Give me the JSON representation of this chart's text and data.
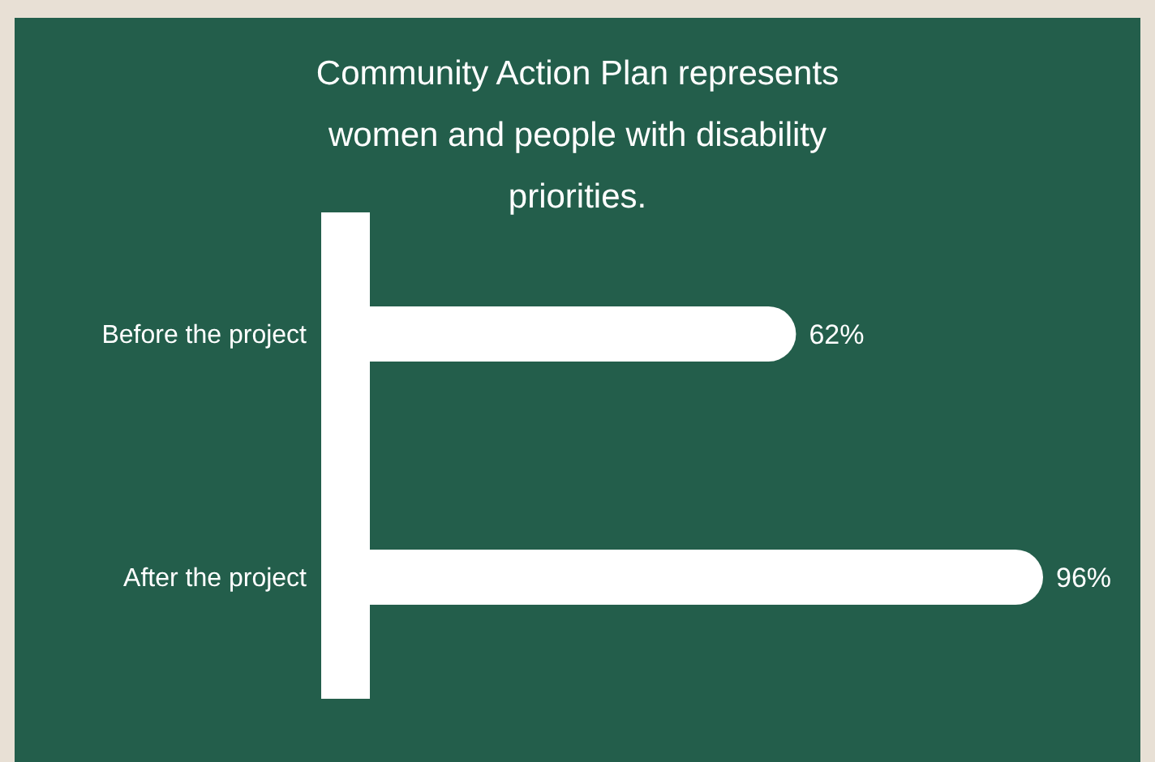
{
  "chart_data": {
    "type": "bar",
    "orientation": "horizontal",
    "title": "Community Action Plan represents women and people with disability priorities.",
    "categories": [
      "Before the project",
      "After the project"
    ],
    "values": [
      62,
      96
    ],
    "value_labels": [
      "62%",
      "96%"
    ],
    "color": "#ffffff",
    "tick_labels": "y",
    "grid": false,
    "legend": false
  }
}
